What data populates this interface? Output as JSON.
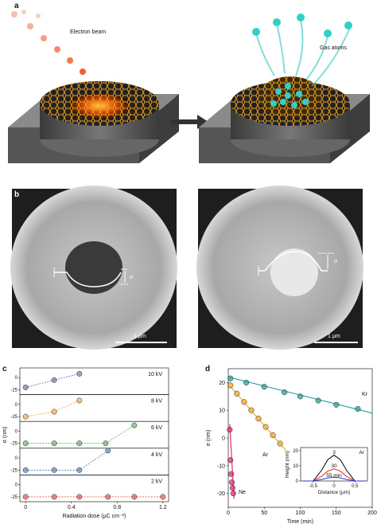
{
  "panel_a": {
    "label": "a",
    "beam_label": "Electron beam",
    "gas_label": "Gas atoms"
  },
  "panel_b": {
    "label": "b",
    "left_sigma": "σ",
    "right_sigma": "σ",
    "left_scale": "1 μm",
    "right_scale": "1 μm"
  },
  "panel_c": {
    "label": "c",
    "type": "scatter",
    "y_label": "σ (nm)",
    "x_label": "Radiation dose (μC cm⁻²)",
    "xlim": [
      -0.05,
      1.25
    ],
    "xticks": [
      0,
      0.4,
      0.8,
      1.2
    ],
    "subplots": [
      {
        "name": "10 kV",
        "color": "#7d55a6",
        "ylim": [
          -35,
          20
        ],
        "yticks": [
          0,
          -25
        ],
        "x": [
          0,
          0.25,
          0.47
        ],
        "values": [
          -20,
          -5,
          8
        ]
      },
      {
        "name": "8 kV",
        "color": "#f0a030",
        "ylim": [
          -35,
          20
        ],
        "yticks": [
          0,
          -25
        ],
        "x": [
          0,
          0.25,
          0.47
        ],
        "values": [
          -25,
          -15,
          8
        ]
      },
      {
        "name": "6 kV",
        "color": "#4cae4c",
        "ylim": [
          -35,
          20
        ],
        "yticks": [
          0,
          -25
        ],
        "x": [
          0,
          0.25,
          0.47,
          0.7,
          0.95
        ],
        "values": [
          -25,
          -25,
          -25,
          -25,
          12
        ]
      },
      {
        "name": "4 kV",
        "color": "#3a7cc0",
        "ylim": [
          -35,
          20
        ],
        "yticks": [
          0,
          -25
        ],
        "x": [
          0,
          0.25,
          0.47,
          0.72
        ],
        "values": [
          -25,
          -25,
          -25,
          15
        ]
      },
      {
        "name": "2 kV",
        "color": "#e0403a",
        "ylim": [
          -35,
          20
        ],
        "yticks": [
          0,
          -25
        ],
        "x": [
          0,
          0.25,
          0.47,
          0.72,
          0.95,
          1.2
        ],
        "values": [
          -25,
          -25,
          -25,
          -25,
          -25,
          -25
        ]
      }
    ]
  },
  "panel_d": {
    "label": "d",
    "type": "line",
    "x_label": "Time (min)",
    "y_label": "σ (nm)",
    "xlim": [
      0,
      200
    ],
    "ylim": [
      -25,
      25
    ],
    "xticks": [
      0,
      50,
      100,
      150,
      200
    ],
    "yticks": [
      20,
      10,
      0,
      -10,
      -20
    ],
    "series": [
      {
        "name": "Kr",
        "color": "#2aa39e",
        "x": [
          3,
          25,
          50,
          78,
          100,
          125,
          150,
          180
        ],
        "values": [
          21.5,
          20,
          18.5,
          16.5,
          15,
          13.5,
          12,
          10.5
        ],
        "fit_x": [
          0,
          200
        ],
        "fit_values": [
          22,
          9
        ]
      },
      {
        "name": "Ar",
        "color": "#f0a830",
        "x": [
          3,
          12,
          22,
          32,
          42,
          52,
          62,
          72
        ],
        "values": [
          19,
          16,
          13,
          10,
          7,
          4,
          1,
          -2
        ],
        "fit_x": [
          0,
          80
        ],
        "fit_values": [
          19.5,
          -4.5
        ]
      },
      {
        "name": "Ne",
        "color": "#e0307a",
        "x": [
          2,
          3,
          4,
          5,
          6,
          7
        ],
        "values": [
          3,
          -8,
          -13,
          -16,
          -18,
          -20
        ],
        "fit_x": [
          2,
          8
        ],
        "fit_values": [
          5,
          -22
        ]
      }
    ],
    "inset": {
      "x_label": "Distance (μm)",
      "y_label": "Height (nm)",
      "gas": "Ar",
      "xlim": [
        -0.8,
        0.8
      ],
      "ylim": [
        0,
        22
      ],
      "xticks": [
        -0.5,
        0,
        0.5
      ],
      "yticks": [
        0,
        10,
        20
      ],
      "x": [
        -0.75,
        -0.5,
        -0.3,
        -0.15,
        0,
        0.15,
        0.3,
        0.5,
        0.75
      ],
      "series": [
        {
          "name": "3",
          "color": "#000000",
          "values": [
            0,
            0,
            7,
            14,
            17,
            14,
            7,
            0,
            0
          ]
        },
        {
          "name": "30",
          "color": "#e02020",
          "values": [
            0,
            0,
            3,
            6.5,
            8,
            6.5,
            3,
            0,
            0
          ]
        },
        {
          "name": "55 min",
          "color": "#2030d0",
          "values": [
            0,
            0,
            1,
            2,
            2.5,
            2,
            1,
            0,
            0
          ]
        }
      ]
    }
  }
}
